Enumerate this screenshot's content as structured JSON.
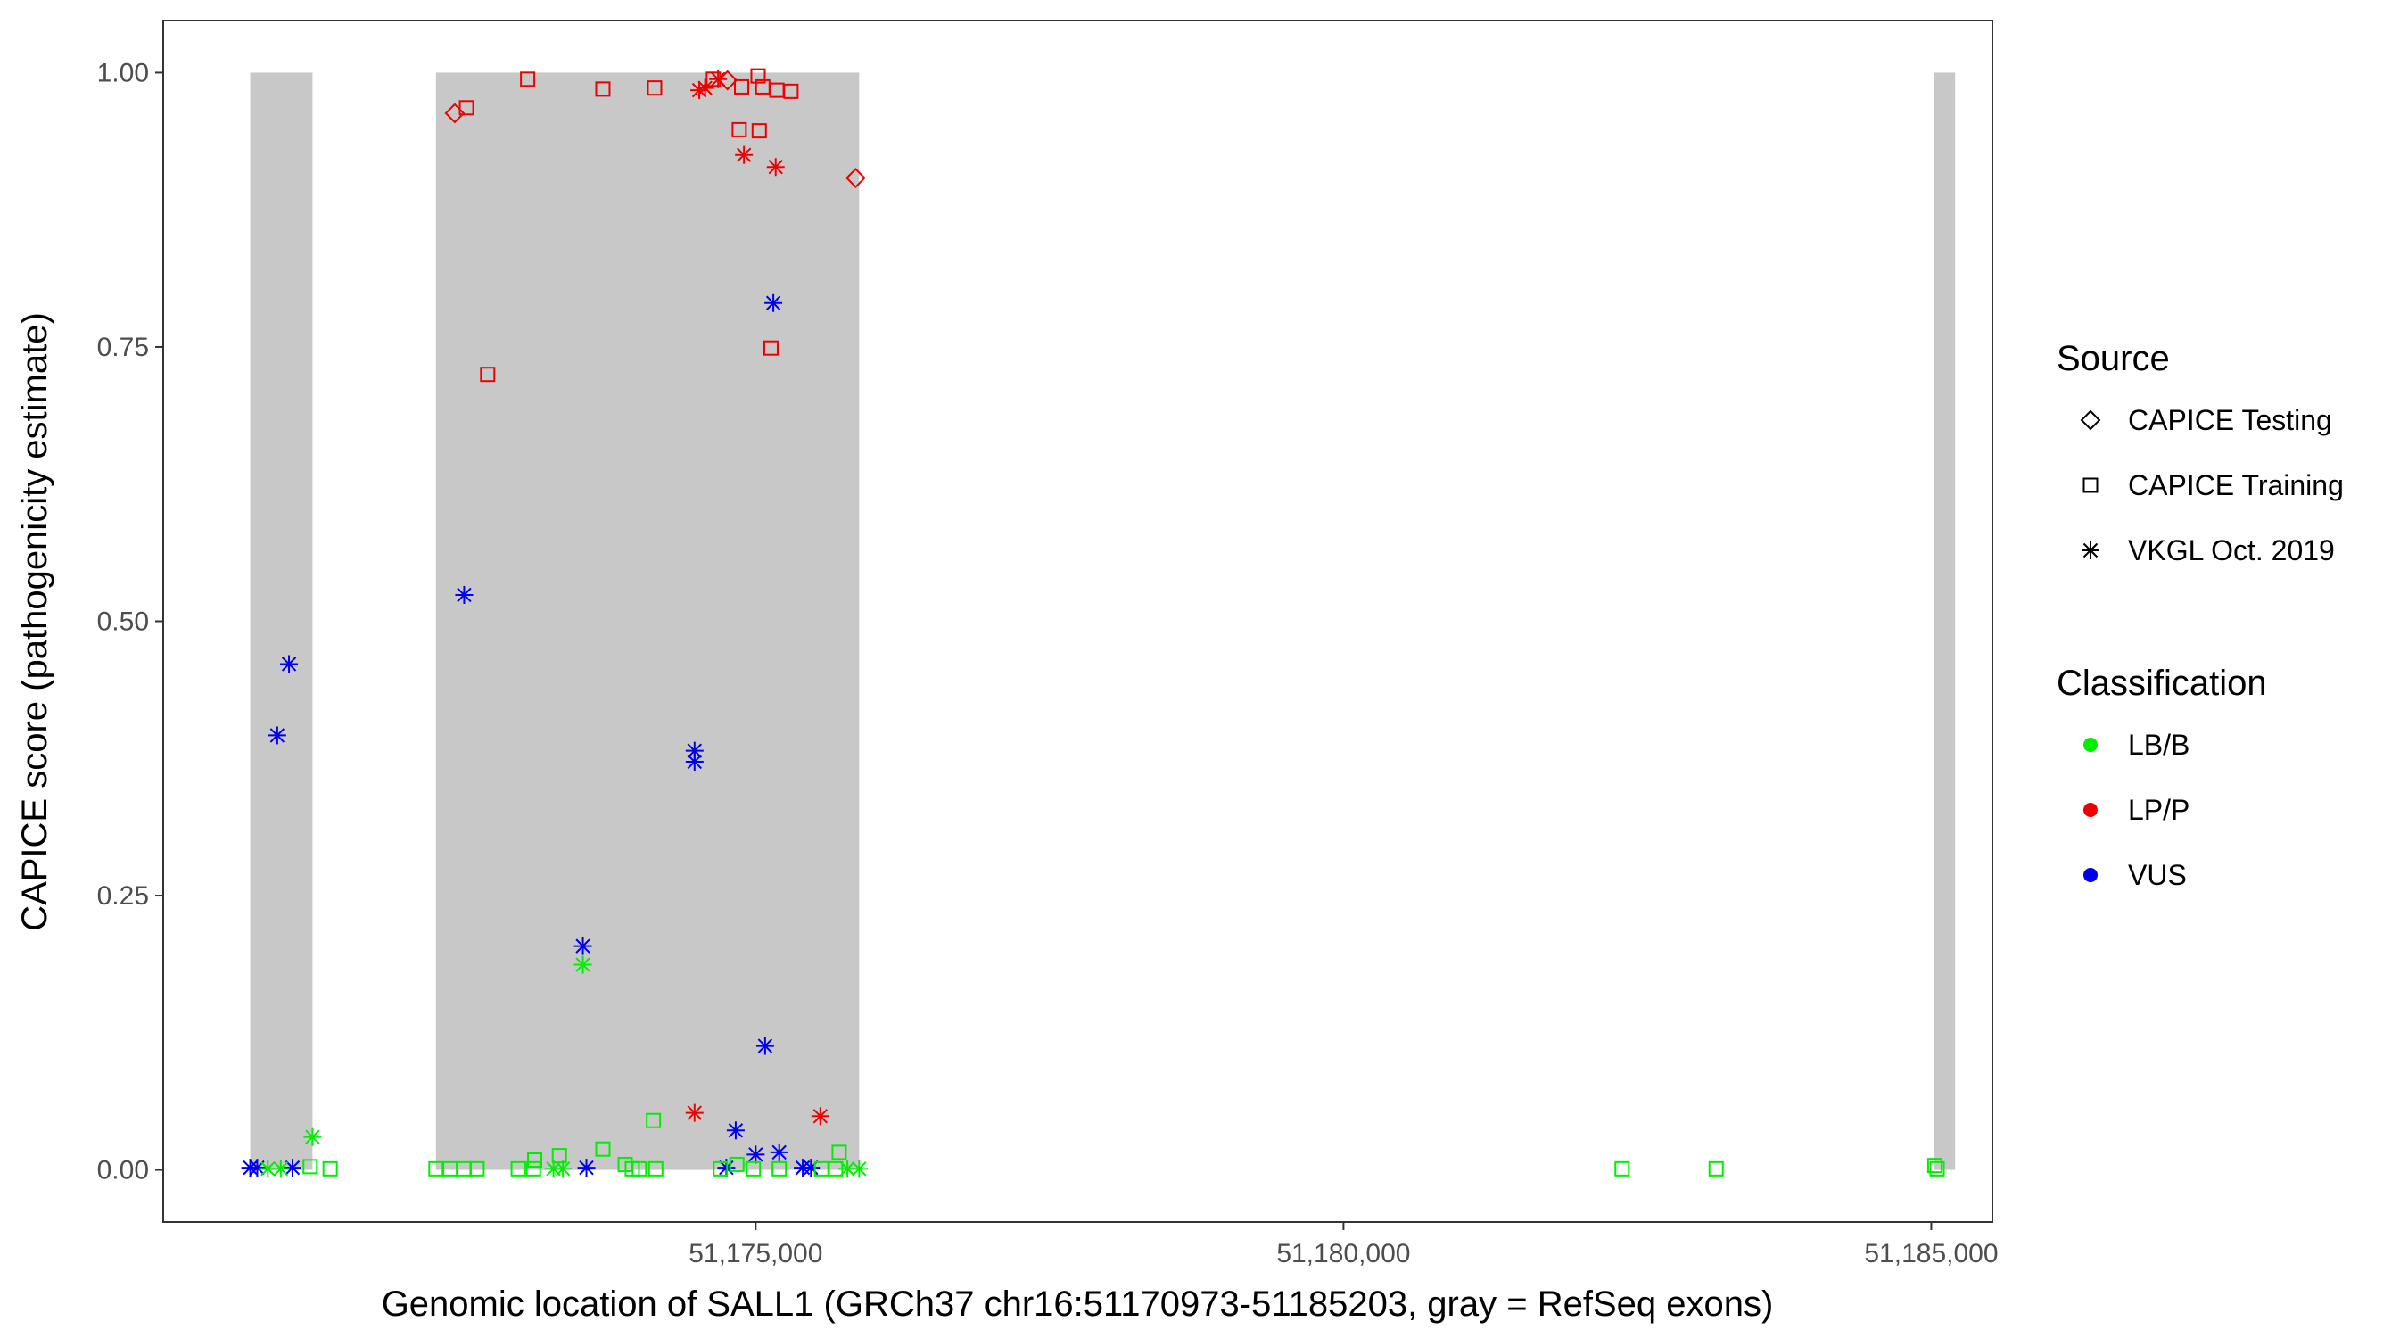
{
  "chart_data": {
    "type": "scatter",
    "title": "",
    "xlabel": "Genomic location of SALL1 (GRCh37 chr16:51170973-51185203, gray = RefSeq exons)",
    "ylabel": "CAPICE score (pathogenicity estimate)",
    "xlim": [
      51169960,
      51185520
    ],
    "ylim": [
      -0.0475,
      1.0475
    ],
    "x_ticks": [
      51175000,
      51180000,
      51185000
    ],
    "x_tick_labels": [
      "51,175,000",
      "51,180,000",
      "51,185,000"
    ],
    "y_ticks": [
      0,
      0.25,
      0.5,
      0.75,
      1.0
    ],
    "y_tick_labels": [
      "0.00",
      "0.25",
      "0.50",
      "0.75",
      "1.00"
    ],
    "grid": false,
    "exon_regions": [
      {
        "start": 51170700,
        "end": 51171230
      },
      {
        "start": 51172280,
        "end": 51175880
      },
      {
        "start": 51185020,
        "end": 51185203
      }
    ],
    "exon_color": "#c8c8c8",
    "legends": [
      {
        "title": "Source",
        "placement": "right",
        "entries": [
          {
            "label": "CAPICE Testing",
            "shape": "diamond"
          },
          {
            "label": "CAPICE Training",
            "shape": "square"
          },
          {
            "label": "VKGL Oct. 2019",
            "shape": "asterisk"
          }
        ]
      },
      {
        "title": "Classification",
        "placement": "right",
        "entries": [
          {
            "label": "LB/B",
            "color": "#00ee00"
          },
          {
            "label": "LP/P",
            "color": "#ee0000"
          },
          {
            "label": "VUS",
            "color": "#0000ee"
          }
        ]
      }
    ],
    "series": [
      {
        "classification": "LP/P",
        "color": "#ee0000",
        "points": [
          {
            "x": 51172440,
            "y": 0.963,
            "shape": "diamond"
          },
          {
            "x": 51172540,
            "y": 0.968,
            "shape": "square"
          },
          {
            "x": 51172720,
            "y": 0.725,
            "shape": "square"
          },
          {
            "x": 51173060,
            "y": 0.994,
            "shape": "square"
          },
          {
            "x": 51173700,
            "y": 0.985,
            "shape": "square"
          },
          {
            "x": 51174140,
            "y": 0.986,
            "shape": "square"
          },
          {
            "x": 51174520,
            "y": 0.984,
            "shape": "asterisk"
          },
          {
            "x": 51174570,
            "y": 0.986,
            "shape": "asterisk"
          },
          {
            "x": 51174640,
            "y": 0.994,
            "shape": "square"
          },
          {
            "x": 51174680,
            "y": 0.994,
            "shape": "asterisk"
          },
          {
            "x": 51174760,
            "y": 0.993,
            "shape": "diamond"
          },
          {
            "x": 51174880,
            "y": 0.987,
            "shape": "square"
          },
          {
            "x": 51175020,
            "y": 0.997,
            "shape": "square"
          },
          {
            "x": 51175060,
            "y": 0.987,
            "shape": "square"
          },
          {
            "x": 51175180,
            "y": 0.984,
            "shape": "square"
          },
          {
            "x": 51175300,
            "y": 0.983,
            "shape": "square"
          },
          {
            "x": 51174860,
            "y": 0.948,
            "shape": "square"
          },
          {
            "x": 51175030,
            "y": 0.947,
            "shape": "square"
          },
          {
            "x": 51174900,
            "y": 0.925,
            "shape": "asterisk"
          },
          {
            "x": 51175170,
            "y": 0.914,
            "shape": "asterisk"
          },
          {
            "x": 51175850,
            "y": 0.904,
            "shape": "diamond"
          },
          {
            "x": 51175130,
            "y": 0.749,
            "shape": "square"
          },
          {
            "x": 51174480,
            "y": 0.052,
            "shape": "asterisk"
          },
          {
            "x": 51175550,
            "y": 0.049,
            "shape": "asterisk"
          }
        ]
      },
      {
        "classification": "VUS",
        "color": "#0000ee",
        "points": [
          {
            "x": 51175150,
            "y": 0.79,
            "shape": "asterisk"
          },
          {
            "x": 51172520,
            "y": 0.524,
            "shape": "asterisk"
          },
          {
            "x": 51171030,
            "y": 0.461,
            "shape": "asterisk"
          },
          {
            "x": 51170930,
            "y": 0.396,
            "shape": "asterisk"
          },
          {
            "x": 51174480,
            "y": 0.382,
            "shape": "asterisk"
          },
          {
            "x": 51174480,
            "y": 0.372,
            "shape": "asterisk"
          },
          {
            "x": 51173530,
            "y": 0.204,
            "shape": "asterisk"
          },
          {
            "x": 51175080,
            "y": 0.113,
            "shape": "asterisk"
          },
          {
            "x": 51174830,
            "y": 0.036,
            "shape": "asterisk"
          },
          {
            "x": 51175200,
            "y": 0.016,
            "shape": "asterisk"
          },
          {
            "x": 51175000,
            "y": 0.014,
            "shape": "asterisk"
          },
          {
            "x": 51170700,
            "y": 0.002,
            "shape": "asterisk"
          },
          {
            "x": 51170760,
            "y": 0.002,
            "shape": "asterisk"
          },
          {
            "x": 51171060,
            "y": 0.002,
            "shape": "asterisk"
          },
          {
            "x": 51173560,
            "y": 0.002,
            "shape": "asterisk"
          },
          {
            "x": 51174750,
            "y": 0.002,
            "shape": "asterisk"
          },
          {
            "x": 51175400,
            "y": 0.002,
            "shape": "asterisk"
          },
          {
            "x": 51175470,
            "y": 0.002,
            "shape": "asterisk"
          }
        ]
      },
      {
        "classification": "LB/B",
        "color": "#00ee00",
        "points": [
          {
            "x": 51173530,
            "y": 0.187,
            "shape": "asterisk"
          },
          {
            "x": 51174130,
            "y": 0.045,
            "shape": "square"
          },
          {
            "x": 51171230,
            "y": 0.03,
            "shape": "asterisk"
          },
          {
            "x": 51173700,
            "y": 0.019,
            "shape": "square"
          },
          {
            "x": 51175710,
            "y": 0.016,
            "shape": "square"
          },
          {
            "x": 51173330,
            "y": 0.013,
            "shape": "square"
          },
          {
            "x": 51173120,
            "y": 0.009,
            "shape": "square"
          },
          {
            "x": 51173890,
            "y": 0.005,
            "shape": "square"
          },
          {
            "x": 51174840,
            "y": 0.005,
            "shape": "square"
          },
          {
            "x": 51171210,
            "y": 0.003,
            "shape": "square"
          },
          {
            "x": 51171380,
            "y": 0.001,
            "shape": "square"
          },
          {
            "x": 51172280,
            "y": 0.001,
            "shape": "square"
          },
          {
            "x": 51172400,
            "y": 0.001,
            "shape": "square"
          },
          {
            "x": 51172520,
            "y": 0.001,
            "shape": "square"
          },
          {
            "x": 51172630,
            "y": 0.001,
            "shape": "square"
          },
          {
            "x": 51172980,
            "y": 0.001,
            "shape": "square"
          },
          {
            "x": 51173110,
            "y": 0.001,
            "shape": "square"
          },
          {
            "x": 51173280,
            "y": 0.001,
            "shape": "asterisk"
          },
          {
            "x": 51173360,
            "y": 0.001,
            "shape": "asterisk"
          },
          {
            "x": 51173950,
            "y": 0.001,
            "shape": "square"
          },
          {
            "x": 51174010,
            "y": 0.001,
            "shape": "square"
          },
          {
            "x": 51174150,
            "y": 0.001,
            "shape": "square"
          },
          {
            "x": 51174700,
            "y": 0.001,
            "shape": "square"
          },
          {
            "x": 51174980,
            "y": 0.001,
            "shape": "square"
          },
          {
            "x": 51175200,
            "y": 0.001,
            "shape": "square"
          },
          {
            "x": 51175560,
            "y": 0.001,
            "shape": "square"
          },
          {
            "x": 51175680,
            "y": 0.001,
            "shape": "square"
          },
          {
            "x": 51175780,
            "y": 0.001,
            "shape": "asterisk"
          },
          {
            "x": 51175880,
            "y": 0.001,
            "shape": "asterisk"
          },
          {
            "x": 51170850,
            "y": 0.001,
            "shape": "asterisk"
          },
          {
            "x": 51170960,
            "y": 0.001,
            "shape": "asterisk"
          },
          {
            "x": 51182370,
            "y": 0.001,
            "shape": "square"
          },
          {
            "x": 51183170,
            "y": 0.001,
            "shape": "square"
          },
          {
            "x": 51185030,
            "y": 0.004,
            "shape": "square"
          },
          {
            "x": 51185050,
            "y": 0.001,
            "shape": "square"
          }
        ]
      }
    ]
  }
}
